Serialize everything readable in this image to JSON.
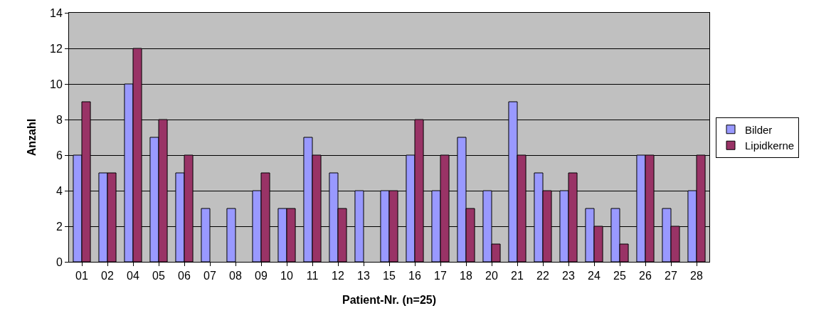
{
  "chart_data": {
    "type": "bar",
    "xlabel": "Patient-Nr. (n=25)",
    "ylabel": "Anzahl",
    "categories": [
      "01",
      "02",
      "04",
      "05",
      "06",
      "07",
      "08",
      "09",
      "10",
      "11",
      "12",
      "13",
      "15",
      "16",
      "17",
      "18",
      "20",
      "21",
      "22",
      "23",
      "24",
      "25",
      "26",
      "27",
      "28"
    ],
    "series": [
      {
        "name": "Bilder",
        "color": "#9999ff",
        "values": [
          6,
          5,
          10,
          7,
          5,
          3,
          3,
          4,
          3,
          7,
          5,
          4,
          4,
          6,
          4,
          7,
          4,
          9,
          5,
          4,
          3,
          3,
          6,
          3,
          4
        ]
      },
      {
        "name": "Lipidkerne",
        "color": "#993366",
        "values": [
          9,
          5,
          12,
          8,
          6,
          null,
          null,
          5,
          3,
          6,
          3,
          null,
          4,
          8,
          6,
          3,
          1,
          6,
          4,
          5,
          2,
          1,
          6,
          2,
          6
        ]
      }
    ],
    "ylim": [
      0,
      14
    ],
    "yticks": [
      0,
      2,
      4,
      6,
      8,
      10,
      12,
      14
    ],
    "grid": "y",
    "legend": "right"
  }
}
